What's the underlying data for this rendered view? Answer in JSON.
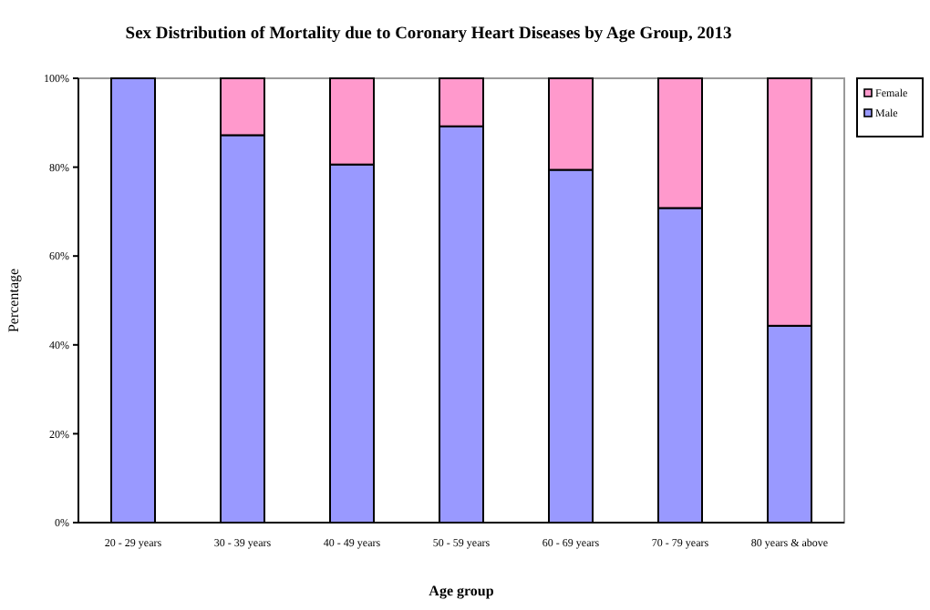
{
  "chart_data": {
    "type": "bar",
    "stacked": true,
    "title": "Sex Distribution of Mortality  due to Coronary  Heart Diseases  by Age  Group, 2013",
    "xlabel": "Age group",
    "ylabel": "Percentage",
    "categories": [
      "20 - 29 years",
      "30 - 39 years",
      "40 - 49 years",
      "50 - 59 years",
      "60 - 69 years",
      "70 - 79 years",
      "80 years & above"
    ],
    "series": [
      {
        "name": "Male",
        "color": "#9999ff",
        "values": [
          100,
          87.2,
          80.6,
          89.2,
          79.4,
          70.8,
          44.3
        ]
      },
      {
        "name": "Female",
        "color": "#ff99cc",
        "values": [
          0,
          12.8,
          19.4,
          10.8,
          20.6,
          29.2,
          55.7
        ]
      }
    ],
    "ylim": [
      0,
      100
    ],
    "yticks": [
      {
        "value": 0,
        "label": "0%"
      },
      {
        "value": 20,
        "label": "20%"
      },
      {
        "value": 40,
        "label": "40%"
      },
      {
        "value": 60,
        "label": "60%"
      },
      {
        "value": 80,
        "label": "80%"
      },
      {
        "value": 100,
        "label": "100%"
      }
    ],
    "grid": false,
    "legend": "right"
  }
}
